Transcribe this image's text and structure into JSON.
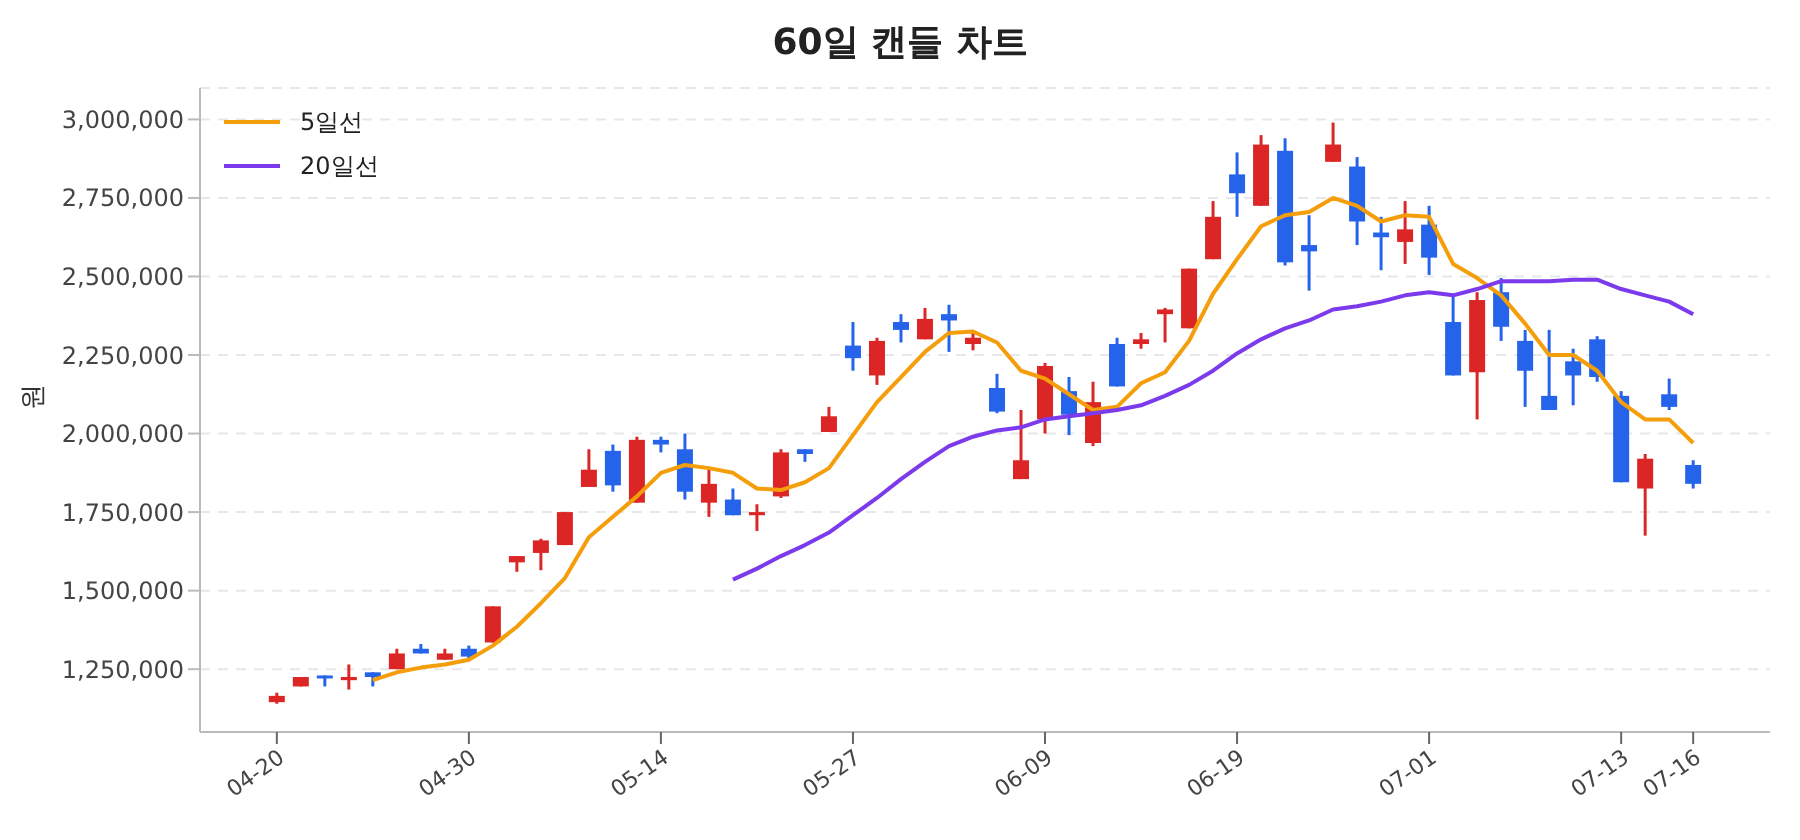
{
  "chart_data": {
    "type": "candlestick",
    "title": "60일 캔들 차트",
    "ylabel": "원",
    "categories": [
      "04-20",
      null,
      null,
      null,
      null,
      null,
      null,
      null,
      "04-30",
      null,
      null,
      null,
      null,
      null,
      null,
      null,
      "05-14",
      null,
      null,
      null,
      null,
      null,
      null,
      null,
      "05-27",
      null,
      null,
      null,
      null,
      null,
      null,
      null,
      "06-09",
      null,
      null,
      null,
      null,
      null,
      null,
      null,
      "06-19",
      null,
      null,
      null,
      null,
      null,
      null,
      null,
      "07-01",
      null,
      null,
      null,
      null,
      null,
      null,
      null,
      "07-13",
      null,
      null,
      "07-16"
    ],
    "ohlc": [
      [
        1145000,
        1175000,
        1140000,
        1165000
      ],
      [
        1195000,
        1225000,
        1195000,
        1225000
      ],
      [
        1230000,
        1230000,
        1195000,
        1225000
      ],
      [
        1215000,
        1265000,
        1185000,
        1225000
      ],
      [
        1240000,
        1240000,
        1195000,
        1225000
      ],
      [
        1250000,
        1315000,
        1250000,
        1300000
      ],
      [
        1315000,
        1330000,
        1300000,
        1300000
      ],
      [
        1280000,
        1315000,
        1280000,
        1300000
      ],
      [
        1315000,
        1325000,
        1280000,
        1290000
      ],
      [
        1335000,
        1450000,
        1335000,
        1450000
      ],
      [
        1590000,
        1610000,
        1560000,
        1610000
      ],
      [
        1620000,
        1665000,
        1565000,
        1660000
      ],
      [
        1645000,
        1750000,
        1645000,
        1750000
      ],
      [
        1830000,
        1950000,
        1830000,
        1885000
      ],
      [
        1945000,
        1965000,
        1815000,
        1835000
      ],
      [
        1780000,
        1990000,
        1780000,
        1980000
      ],
      [
        1980000,
        1990000,
        1940000,
        1965000
      ],
      [
        1950000,
        2000000,
        1790000,
        1815000
      ],
      [
        1780000,
        1885000,
        1735000,
        1840000
      ],
      [
        1790000,
        1825000,
        1740000,
        1740000
      ],
      [
        1740000,
        1775000,
        1690000,
        1750000
      ],
      [
        1800000,
        1950000,
        1795000,
        1940000
      ],
      [
        1950000,
        1950000,
        1910000,
        1935000
      ],
      [
        2005000,
        2085000,
        2005000,
        2055000
      ],
      [
        2280000,
        2355000,
        2200000,
        2240000
      ],
      [
        2185000,
        2305000,
        2155000,
        2295000
      ],
      [
        2355000,
        2380000,
        2290000,
        2330000
      ],
      [
        2300000,
        2400000,
        2300000,
        2365000
      ],
      [
        2380000,
        2410000,
        2260000,
        2360000
      ],
      [
        2285000,
        2325000,
        2265000,
        2305000
      ],
      [
        2145000,
        2190000,
        2065000,
        2070000
      ],
      [
        1855000,
        2075000,
        1855000,
        1915000
      ],
      [
        2045000,
        2225000,
        2000000,
        2215000
      ],
      [
        2135000,
        2180000,
        1995000,
        2060000
      ],
      [
        1970000,
        2165000,
        1960000,
        2100000
      ],
      [
        2285000,
        2305000,
        2150000,
        2150000
      ],
      [
        2285000,
        2320000,
        2270000,
        2300000
      ],
      [
        2380000,
        2400000,
        2290000,
        2395000
      ],
      [
        2335000,
        2525000,
        2335000,
        2525000
      ],
      [
        2555000,
        2740000,
        2555000,
        2690000
      ],
      [
        2825000,
        2895000,
        2690000,
        2765000
      ],
      [
        2725000,
        2950000,
        2725000,
        2920000
      ],
      [
        2900000,
        2940000,
        2535000,
        2545000
      ],
      [
        2600000,
        2695000,
        2455000,
        2580000
      ],
      [
        2865000,
        2990000,
        2865000,
        2920000
      ],
      [
        2850000,
        2880000,
        2600000,
        2675000
      ],
      [
        2640000,
        2690000,
        2520000,
        2625000
      ],
      [
        2610000,
        2740000,
        2540000,
        2650000
      ],
      [
        2665000,
        2725000,
        2505000,
        2560000
      ],
      [
        2355000,
        2440000,
        2185000,
        2185000
      ],
      [
        2195000,
        2450000,
        2045000,
        2425000
      ],
      [
        2450000,
        2495000,
        2295000,
        2340000
      ],
      [
        2295000,
        2330000,
        2085000,
        2200000
      ],
      [
        2120000,
        2330000,
        2075000,
        2075000
      ],
      [
        2230000,
        2270000,
        2090000,
        2185000
      ],
      [
        2300000,
        2310000,
        2165000,
        2180000
      ],
      [
        2120000,
        2135000,
        1845000,
        1845000
      ],
      [
        1825000,
        1935000,
        1675000,
        1920000
      ],
      [
        2125000,
        2175000,
        2075000,
        2085000
      ],
      [
        1900000,
        1915000,
        1825000,
        1840000
      ]
    ],
    "colors": [
      "#dc2626",
      "#dc2626",
      "#2563eb",
      "#dc2626",
      "#2563eb",
      "#dc2626",
      "#2563eb",
      "#dc2626",
      "#2563eb",
      "#dc2626",
      "#dc2626",
      "#dc2626",
      "#dc2626",
      "#dc2626",
      "#2563eb",
      "#dc2626",
      "#2563eb",
      "#2563eb",
      "#dc2626",
      "#2563eb",
      "#dc2626",
      "#dc2626",
      "#2563eb",
      "#dc2626",
      "#2563eb",
      "#dc2626",
      "#2563eb",
      "#dc2626",
      "#2563eb",
      "#dc2626",
      "#2563eb",
      "#dc2626",
      "#dc2626",
      "#2563eb",
      "#dc2626",
      "#2563eb",
      "#dc2626",
      "#dc2626",
      "#dc2626",
      "#dc2626",
      "#2563eb",
      "#dc2626",
      "#2563eb",
      "#2563eb",
      "#dc2626",
      "#2563eb",
      "#2563eb",
      "#dc2626",
      "#2563eb",
      "#2563eb",
      "#dc2626",
      "#2563eb",
      "#2563eb",
      "#2563eb",
      "#2563eb",
      "#2563eb",
      "#2563eb",
      "#dc2626",
      "#2563eb",
      "#2563eb"
    ],
    "series": [
      {
        "type": "line",
        "name": "5일선",
        "color": "#f59e0b",
        "values": [
          null,
          null,
          null,
          null,
          1215000,
          1240000,
          1255000,
          1265000,
          1280000,
          1325000,
          1385000,
          1460000,
          1540000,
          1670000,
          1735000,
          1800000,
          1875000,
          1900000,
          1890000,
          1875000,
          1825000,
          1820000,
          1845000,
          1890000,
          1995000,
          2100000,
          2180000,
          2260000,
          2320000,
          2325000,
          2290000,
          2200000,
          2175000,
          2125000,
          2075000,
          2085000,
          2160000,
          2195000,
          2295000,
          2445000,
          2555000,
          2660000,
          2695000,
          2705000,
          2750000,
          2725000,
          2675000,
          2695000,
          2690000,
          2540000,
          2495000,
          2440000,
          2350000,
          2250000,
          2250000,
          2200000,
          2100000,
          2045000,
          2045000,
          1970000
        ]
      },
      {
        "type": "line",
        "name": "20일선",
        "color": "#7c3aed",
        "values": [
          null,
          null,
          null,
          null,
          null,
          null,
          null,
          null,
          null,
          null,
          null,
          null,
          null,
          null,
          null,
          null,
          null,
          null,
          null,
          1535000,
          1570000,
          1610000,
          1645000,
          1685000,
          1740000,
          1795000,
          1855000,
          1910000,
          1960000,
          1990000,
          2010000,
          2020000,
          2045000,
          2055000,
          2065000,
          2075000,
          2090000,
          2120000,
          2155000,
          2200000,
          2255000,
          2300000,
          2335000,
          2360000,
          2395000,
          2405000,
          2420000,
          2440000,
          2450000,
          2440000,
          2460000,
          2485000,
          2485000,
          2485000,
          2490000,
          2490000,
          2460000,
          2440000,
          2420000,
          2380000
        ]
      }
    ],
    "ylim": [
      1050000,
      3100000
    ],
    "yticks": [
      {
        "value": 1250000,
        "label": "1,250,000"
      },
      {
        "value": 1500000,
        "label": "1,500,000"
      },
      {
        "value": 1750000,
        "label": "1,750,000"
      },
      {
        "value": 2000000,
        "label": "2,000,000"
      },
      {
        "value": 2250000,
        "label": "2,250,000"
      },
      {
        "value": 2500000,
        "label": "2,500,000"
      },
      {
        "value": 2750000,
        "label": "2,750,000"
      },
      {
        "value": 3000000,
        "label": "3,000,000"
      }
    ],
    "grid": "y",
    "legend": "top left"
  }
}
